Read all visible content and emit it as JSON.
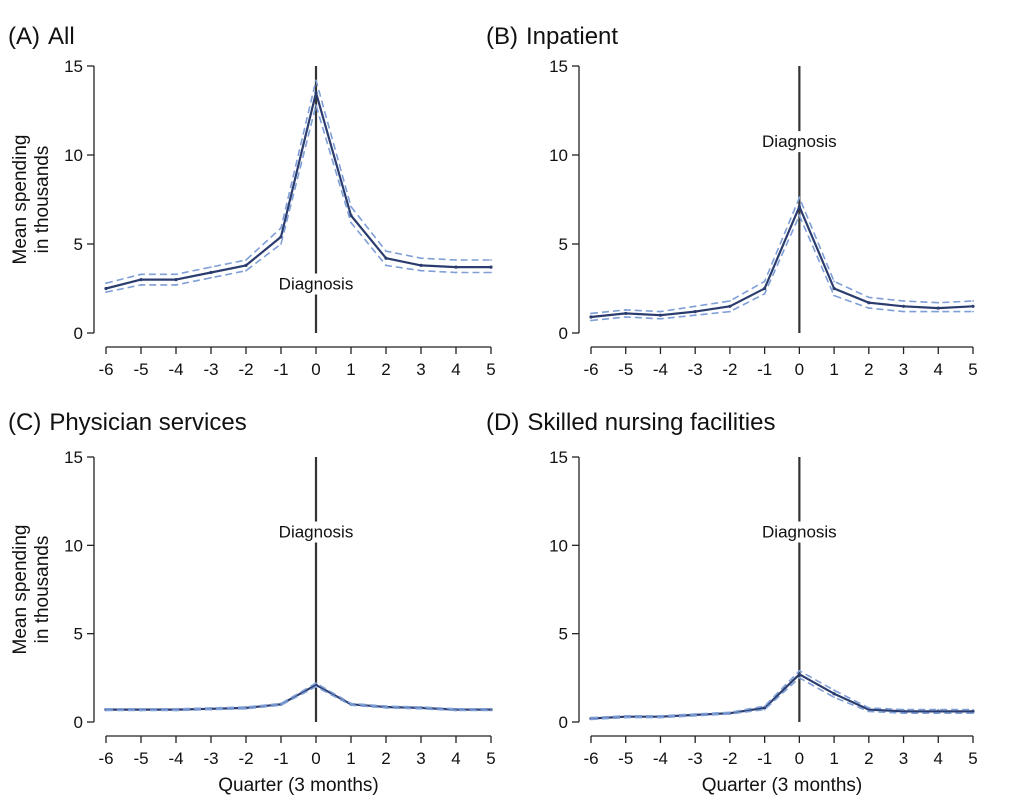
{
  "figure": {
    "ylabel": "Mean spending in thousands",
    "ylabel_lines": [
      "Mean spending",
      "in thousands"
    ],
    "xlabel": "Quarter (3 months)",
    "event_label": "Diagnosis",
    "colors": {
      "mean": "#2b3d6e",
      "ci": "#7f9fd6",
      "axis": "#222222",
      "event_line": "#333333"
    }
  },
  "chart_data": [
    {
      "type": "line",
      "panel": "(A)",
      "title": "All",
      "x": [
        -6,
        -5,
        -4,
        -3,
        -2,
        -1,
        0,
        1,
        2,
        3,
        4,
        5
      ],
      "xlim": [
        -6,
        5
      ],
      "ylim": [
        0,
        15
      ],
      "yticks": [
        0,
        5,
        10,
        15
      ],
      "event_x": 0,
      "event_label_y": 2.5,
      "show_ylabel": true,
      "show_xlabel": false,
      "series": [
        {
          "role": "mean",
          "values": [
            2.5,
            3.0,
            3.0,
            3.4,
            3.8,
            5.4,
            13.5,
            6.6,
            4.2,
            3.8,
            3.7,
            3.7
          ]
        },
        {
          "role": "ci_upper",
          "values": [
            2.8,
            3.3,
            3.3,
            3.7,
            4.1,
            5.9,
            14.2,
            7.1,
            4.6,
            4.2,
            4.1,
            4.1
          ]
        },
        {
          "role": "ci_lower",
          "values": [
            2.3,
            2.7,
            2.7,
            3.1,
            3.5,
            5.0,
            12.8,
            6.2,
            3.8,
            3.5,
            3.4,
            3.4
          ]
        }
      ]
    },
    {
      "type": "line",
      "panel": "(B)",
      "title": "Inpatient",
      "x": [
        -6,
        -5,
        -4,
        -3,
        -2,
        -1,
        0,
        1,
        2,
        3,
        4,
        5
      ],
      "xlim": [
        -6,
        5
      ],
      "ylim": [
        0,
        15
      ],
      "yticks": [
        0,
        5,
        10,
        15
      ],
      "event_x": 0,
      "event_label_y": 10.5,
      "show_ylabel": false,
      "show_xlabel": false,
      "series": [
        {
          "role": "mean",
          "values": [
            0.9,
            1.1,
            1.0,
            1.2,
            1.5,
            2.5,
            7.1,
            2.5,
            1.7,
            1.5,
            1.4,
            1.5
          ]
        },
        {
          "role": "ci_upper",
          "values": [
            1.1,
            1.3,
            1.2,
            1.5,
            1.8,
            2.9,
            7.6,
            2.9,
            2.0,
            1.8,
            1.7,
            1.8
          ]
        },
        {
          "role": "ci_lower",
          "values": [
            0.7,
            0.9,
            0.8,
            1.0,
            1.2,
            2.2,
            6.6,
            2.1,
            1.4,
            1.2,
            1.2,
            1.2
          ]
        }
      ]
    },
    {
      "type": "line",
      "panel": "(C)",
      "title": "Physician services",
      "x": [
        -6,
        -5,
        -4,
        -3,
        -2,
        -1,
        0,
        1,
        2,
        3,
        4,
        5
      ],
      "xlim": [
        -6,
        5
      ],
      "ylim": [
        0,
        15
      ],
      "yticks": [
        0,
        5,
        10,
        15
      ],
      "event_x": 0,
      "event_label_y": 10.5,
      "show_ylabel": true,
      "show_xlabel": true,
      "series": [
        {
          "role": "mean",
          "values": [
            0.7,
            0.7,
            0.7,
            0.75,
            0.8,
            1.0,
            2.1,
            1.0,
            0.85,
            0.8,
            0.7,
            0.7
          ]
        },
        {
          "role": "ci_upper",
          "values": [
            0.75,
            0.75,
            0.75,
            0.8,
            0.85,
            1.05,
            2.2,
            1.05,
            0.9,
            0.85,
            0.75,
            0.75
          ]
        },
        {
          "role": "ci_lower",
          "values": [
            0.65,
            0.65,
            0.65,
            0.7,
            0.75,
            0.95,
            2.0,
            0.95,
            0.8,
            0.75,
            0.65,
            0.65
          ]
        }
      ]
    },
    {
      "type": "line",
      "panel": "(D)",
      "title": "Skilled nursing facilities",
      "x": [
        -6,
        -5,
        -4,
        -3,
        -2,
        -1,
        0,
        1,
        2,
        3,
        4,
        5
      ],
      "xlim": [
        -6,
        5
      ],
      "ylim": [
        0,
        15
      ],
      "yticks": [
        0,
        5,
        10,
        15
      ],
      "event_x": 0,
      "event_label_y": 10.5,
      "show_ylabel": false,
      "show_xlabel": true,
      "series": [
        {
          "role": "mean",
          "values": [
            0.2,
            0.3,
            0.3,
            0.4,
            0.5,
            0.8,
            2.7,
            1.6,
            0.7,
            0.6,
            0.6,
            0.6
          ]
        },
        {
          "role": "ci_upper",
          "values": [
            0.25,
            0.35,
            0.35,
            0.45,
            0.55,
            0.9,
            2.9,
            1.8,
            0.8,
            0.7,
            0.7,
            0.7
          ]
        },
        {
          "role": "ci_lower",
          "values": [
            0.15,
            0.25,
            0.25,
            0.35,
            0.45,
            0.7,
            2.5,
            1.4,
            0.6,
            0.5,
            0.5,
            0.5
          ]
        }
      ]
    }
  ]
}
